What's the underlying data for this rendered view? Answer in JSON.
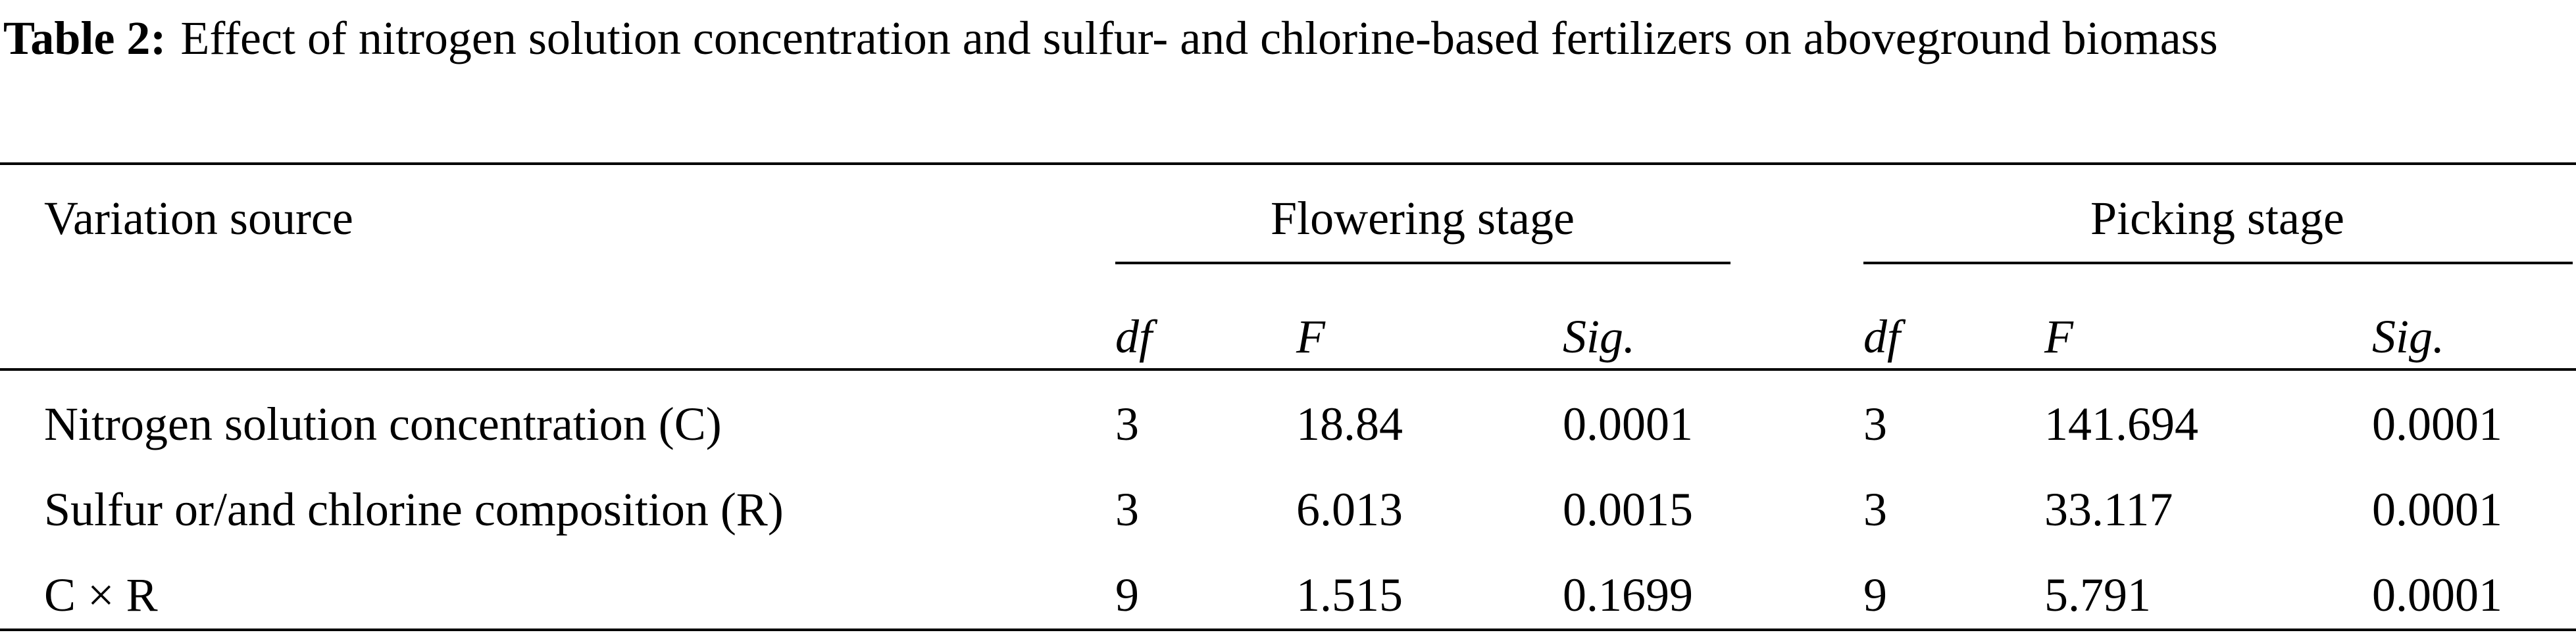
{
  "caption": {
    "label": "Table 2:",
    "text": "Effect of nitrogen solution concentration and sulfur- and chlorine-based fertilizers on aboveground biomass"
  },
  "table": {
    "header": {
      "source": "Variation source",
      "groups": [
        "Flowering stage",
        "Picking stage"
      ],
      "subheaders": [
        "df",
        "F",
        "Sig.",
        "df",
        "F",
        "Sig."
      ]
    },
    "rows": [
      [
        "Nitrogen solution concentration (C)",
        "3",
        "18.84",
        "0.0001",
        "3",
        "141.694",
        "0.0001"
      ],
      [
        "Sulfur or/and chlorine composition (R)",
        "3",
        "6.013",
        "0.0015",
        "3",
        "33.117",
        "0.0001"
      ],
      [
        "C × R",
        "9",
        "1.515",
        "0.1699",
        "9",
        "5.791",
        "0.0001"
      ]
    ]
  }
}
